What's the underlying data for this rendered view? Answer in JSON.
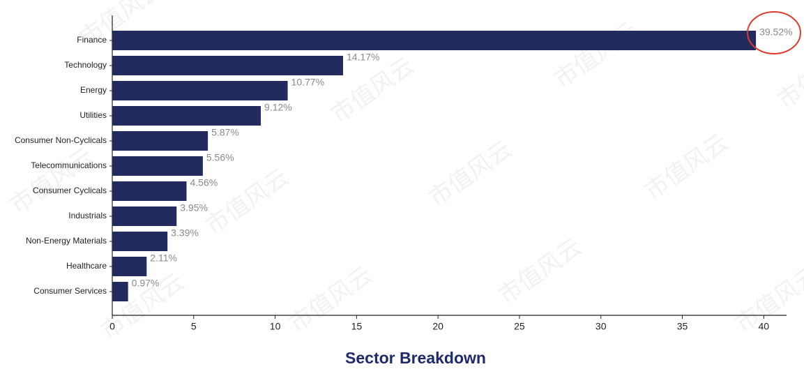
{
  "chart_data": {
    "type": "hbar",
    "title": "Sector Breakdown",
    "categories": [
      "Finance",
      "Technology",
      "Energy",
      "Utilities",
      "Consumer Non-Cyclicals",
      "Telecommunications",
      "Consumer Cyclicals",
      "Industrials",
      "Non-Energy Materials",
      "Healthcare",
      "Consumer Services"
    ],
    "values": [
      39.52,
      14.17,
      10.77,
      9.12,
      5.87,
      5.56,
      4.56,
      3.95,
      3.39,
      2.11,
      0.97
    ],
    "value_labels": [
      "39.52%",
      "14.17%",
      "10.77%",
      "9.12%",
      "5.87%",
      "5.56%",
      "4.56%",
      "3.95%",
      "3.39%",
      "2.11%",
      "0.97%"
    ],
    "color": "#232a5e",
    "xlim": [
      0,
      41.4
    ],
    "xticks": [
      0,
      5,
      10,
      15,
      20,
      25,
      30,
      35,
      40
    ],
    "grid": false,
    "watermark": "市值风云"
  }
}
